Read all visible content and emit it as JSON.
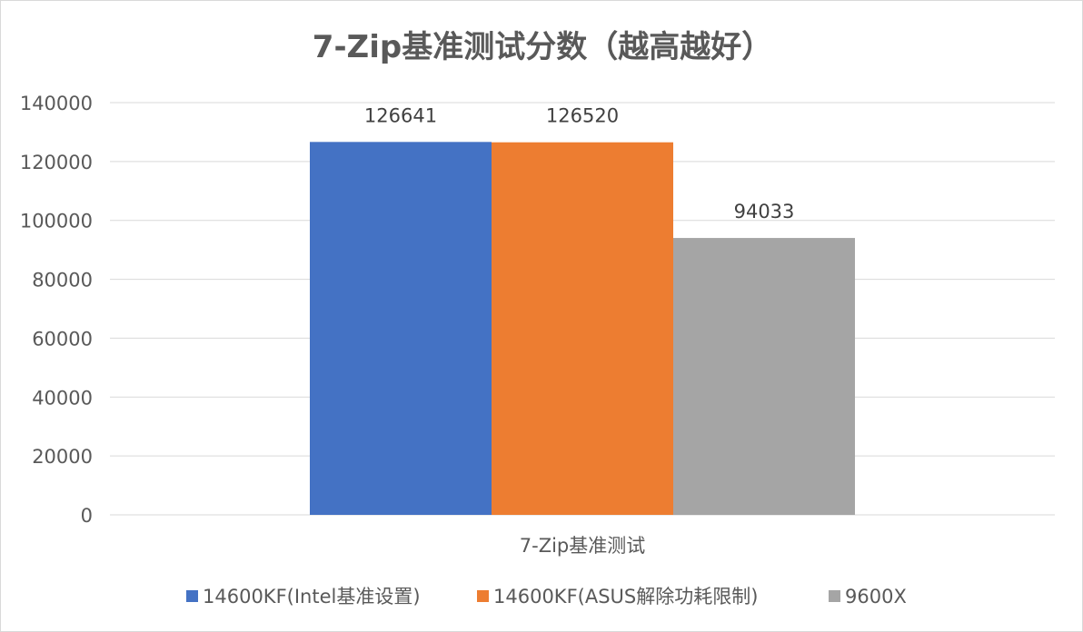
{
  "chart_data": {
    "type": "bar",
    "title": "7-Zip基准测试分数（越高越好）",
    "categories": [
      "7-Zip基准测试"
    ],
    "series": [
      {
        "name": "14600KF(Intel基准设置)",
        "values": [
          126641
        ],
        "color": "#4472c4"
      },
      {
        "name": "14600KF(ASUS解除功耗限制)",
        "values": [
          126520
        ],
        "color": "#ed7d31"
      },
      {
        "name": "9600X",
        "values": [
          94033
        ],
        "color": "#a5a5a5"
      }
    ],
    "ylim": [
      0,
      140000
    ],
    "yticks": [
      0,
      20000,
      40000,
      60000,
      80000,
      100000,
      120000,
      140000
    ],
    "xlabel": "",
    "ylabel": "",
    "grid": true,
    "data_labels": true,
    "legend_position": "bottom"
  }
}
